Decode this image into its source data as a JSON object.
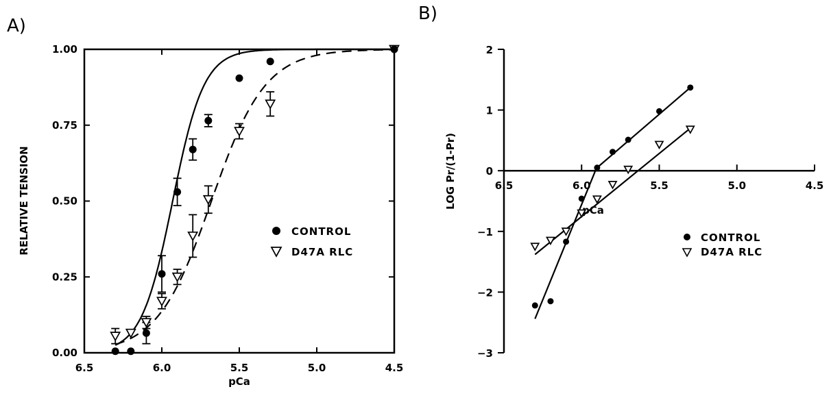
{
  "chart_data": [
    {
      "panel_label": "A)",
      "type": "scatter",
      "xlabel": "pCa",
      "ylabel": "RELATIVE TENSION",
      "xlim": [
        6.5,
        4.5
      ],
      "ylim": [
        0,
        1
      ],
      "x_reversed": true,
      "x_ticks": [
        "6.5",
        "6.0",
        "5.5",
        "5.0",
        "4.5"
      ],
      "y_ticks": [
        "0.00",
        "0.25",
        "0.50",
        "0.75",
        "1.00"
      ],
      "grid": false,
      "legend_position": "center-right",
      "series": [
        {
          "name": "CONTROL",
          "marker": "filled-circle",
          "line": "solid",
          "x": [
            6.3,
            6.2,
            6.1,
            6.0,
            5.9,
            5.8,
            5.7,
            5.5,
            5.3,
            4.5
          ],
          "y": [
            0.005,
            0.005,
            0.065,
            0.26,
            0.53,
            0.67,
            0.765,
            0.905,
            0.96,
            1.0
          ],
          "error": [
            0,
            0,
            0.035,
            0.06,
            0.045,
            0.035,
            0.02,
            0,
            0,
            0
          ],
          "hill_fit": {
            "pCa50": 5.93,
            "n": 4.3
          }
        },
        {
          "name": "D47A RLC",
          "marker": "open-triangle-down",
          "line": "dashed",
          "x": [
            6.3,
            6.2,
            6.1,
            6.0,
            5.9,
            5.8,
            5.7,
            5.5,
            5.3,
            4.5
          ],
          "y": [
            0.055,
            0.065,
            0.1,
            0.17,
            0.25,
            0.385,
            0.505,
            0.73,
            0.82,
            1.0
          ],
          "error": [
            0.025,
            0,
            0.02,
            0.025,
            0.025,
            0.07,
            0.045,
            0.025,
            0.04,
            0
          ],
          "hill_fit": {
            "pCa50": 5.68,
            "n": 2.5
          }
        }
      ]
    },
    {
      "panel_label": "B)",
      "type": "scatter",
      "xlabel": "pCa",
      "ylabel": "LOG Pr/(1-Pr)",
      "xlim": [
        6.5,
        4.5
      ],
      "ylim": [
        -3,
        2
      ],
      "x_reversed": true,
      "x_ticks": [
        "6.5",
        "6.0",
        "5.5",
        "5.0",
        "4.5"
      ],
      "y_ticks": [
        "2",
        "1",
        "0",
        "-1",
        "-2",
        "-3"
      ],
      "grid": false,
      "legend_position": "center-right",
      "series": [
        {
          "name": "CONTROL",
          "marker": "filled-circle",
          "x": [
            6.3,
            6.2,
            6.1,
            6.0,
            5.9,
            5.8,
            5.7,
            5.5,
            5.3
          ],
          "y": [
            -2.22,
            -2.15,
            -1.17,
            -0.46,
            0.05,
            0.31,
            0.51,
            0.98,
            1.37
          ],
          "fit_lines": [
            {
              "x": [
                6.3,
                5.9
              ],
              "y": [
                -2.44,
                0.07
              ]
            },
            {
              "x": [
                5.9,
                5.3
              ],
              "y": [
                0.05,
                1.37
              ]
            }
          ]
        },
        {
          "name": "D47A RLC",
          "marker": "open-triangle-down",
          "x": [
            6.3,
            6.2,
            6.1,
            6.0,
            5.9,
            5.8,
            5.7,
            5.5,
            5.3
          ],
          "y": [
            -1.25,
            -1.15,
            -1.0,
            -0.7,
            -0.47,
            -0.23,
            0.02,
            0.43,
            0.68
          ],
          "fit_lines": [
            {
              "x": [
                6.3,
                5.3
              ],
              "y": [
                -1.38,
                0.7
              ]
            }
          ]
        }
      ]
    }
  ]
}
